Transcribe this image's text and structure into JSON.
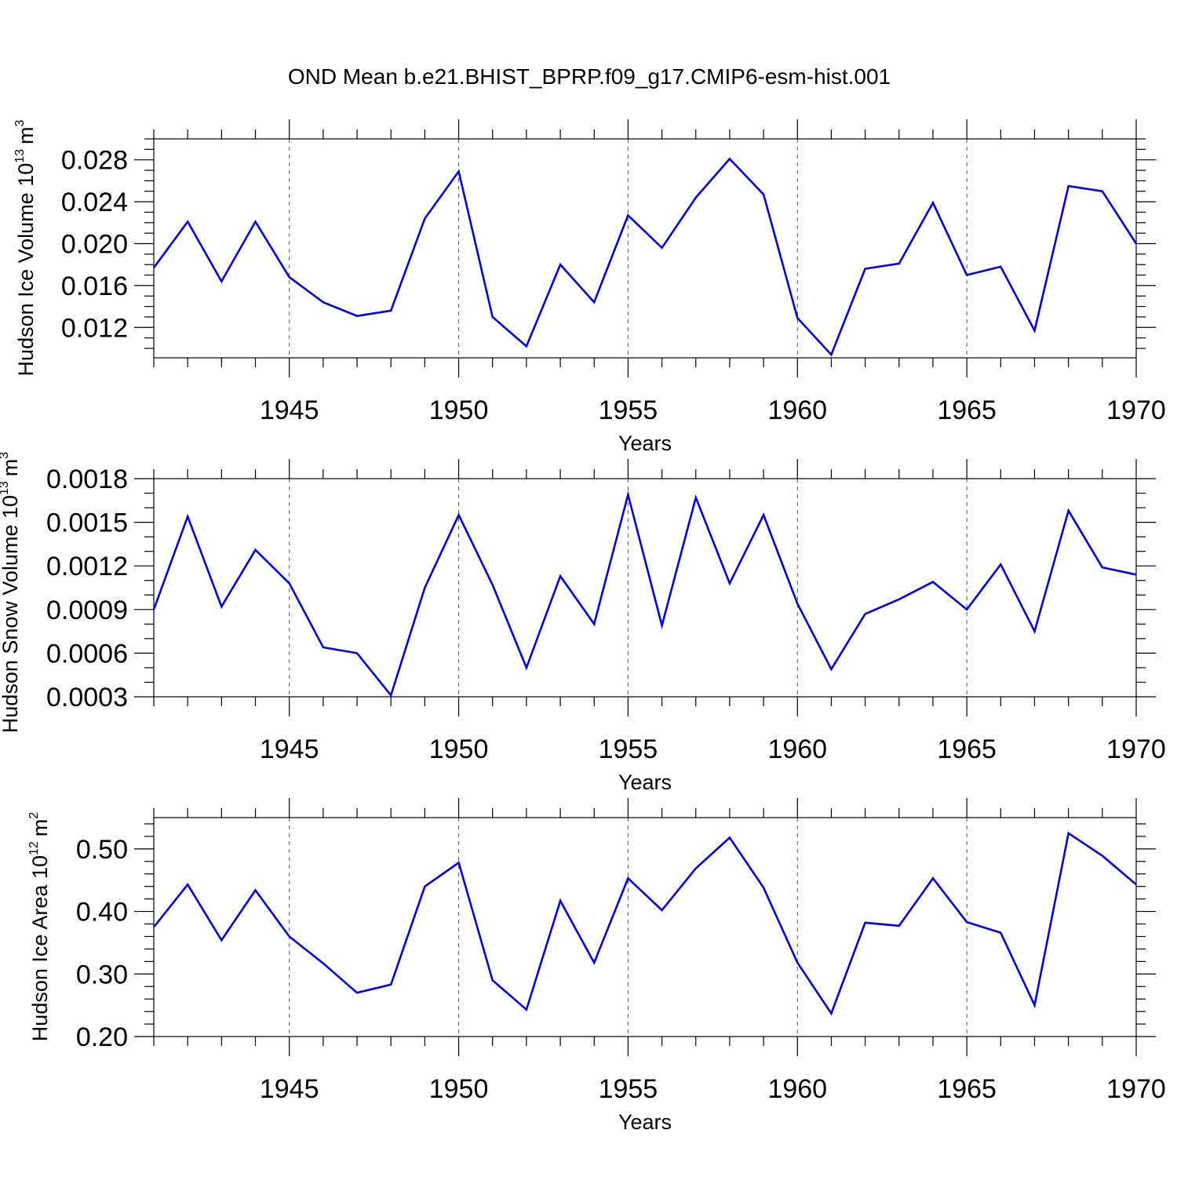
{
  "title": "OND Mean b.e21.BHIST_BPRP.f09_g17.CMIP6-esm-hist.001",
  "line_color": "#0000ee",
  "chart_data": [
    {
      "type": "line",
      "xlabel": "Years",
      "ylabel_text": "Hudson Ice Volume 10",
      "ylabel_exp": "13",
      "ylabel_unit": "m",
      "ylabel_unit_exp": "3",
      "xlim": [
        1941,
        1970
      ],
      "ylim": [
        0.0091,
        0.03
      ],
      "grid": "dashed vertical at major x ticks",
      "x_ticks": [
        1945,
        1950,
        1955,
        1960,
        1965,
        1970
      ],
      "x_tick_labels": [
        "1945",
        "1950",
        "1955",
        "1960",
        "1965",
        "1970"
      ],
      "y_ticks": [
        0.012,
        0.016,
        0.02,
        0.024,
        0.028
      ],
      "y_tick_labels": [
        "0.012",
        "0.016",
        "0.020",
        "0.024",
        "0.028"
      ],
      "y_minor_step": 0.001,
      "x": [
        1941,
        1942,
        1943,
        1944,
        1945,
        1946,
        1947,
        1948,
        1949,
        1950,
        1951,
        1952,
        1953,
        1954,
        1955,
        1956,
        1957,
        1958,
        1959,
        1960,
        1961,
        1962,
        1963,
        1964,
        1965,
        1966,
        1967,
        1968,
        1969,
        1970
      ],
      "y": [
        0.0177,
        0.0221,
        0.0164,
        0.0221,
        0.0168,
        0.0144,
        0.0131,
        0.0136,
        0.0224,
        0.0269,
        0.013,
        0.0102,
        0.018,
        0.0144,
        0.0227,
        0.0196,
        0.0244,
        0.0281,
        0.0247,
        0.0129,
        0.0094,
        0.0176,
        0.0181,
        0.0239,
        0.017,
        0.0178,
        0.0117,
        0.0255,
        0.025,
        0.02
      ]
    },
    {
      "type": "line",
      "xlabel": "Years",
      "ylabel_text": "Hudson Snow Volume 10",
      "ylabel_exp": "13",
      "ylabel_unit": "m",
      "ylabel_unit_exp": "3",
      "xlim": [
        1941,
        1970
      ],
      "ylim": [
        0.0003,
        0.0018
      ],
      "grid": "dashed vertical at major x ticks",
      "x_ticks": [
        1945,
        1950,
        1955,
        1960,
        1965,
        1970
      ],
      "x_tick_labels": [
        "1945",
        "1950",
        "1955",
        "1960",
        "1965",
        "1970"
      ],
      "y_ticks": [
        0.0003,
        0.0006,
        0.0009,
        0.0012,
        0.0015,
        0.0018
      ],
      "y_tick_labels": [
        "0.0003",
        "0.0006",
        "0.0009",
        "0.0012",
        "0.0015",
        "0.0018"
      ],
      "y_minor_step": 0.0001,
      "x": [
        1941,
        1942,
        1943,
        1944,
        1945,
        1946,
        1947,
        1948,
        1949,
        1950,
        1951,
        1952,
        1953,
        1954,
        1955,
        1956,
        1957,
        1958,
        1959,
        1960,
        1961,
        1962,
        1963,
        1964,
        1965,
        1966,
        1967,
        1968,
        1969,
        1970
      ],
      "y": [
        0.0009,
        0.00154,
        0.00092,
        0.00131,
        0.00108,
        0.00064,
        0.0006,
        0.00031,
        0.00105,
        0.00155,
        0.00107,
        0.0005,
        0.00113,
        0.0008,
        0.00169,
        0.00079,
        0.00167,
        0.00108,
        0.00155,
        0.00094,
        0.00049,
        0.00087,
        0.00097,
        0.00109,
        0.0009,
        0.00121,
        0.00075,
        0.00158,
        0.00119,
        0.00114
      ]
    },
    {
      "type": "line",
      "xlabel": "Years",
      "ylabel_text": "Hudson Ice Area 10",
      "ylabel_exp": "12",
      "ylabel_unit": "m",
      "ylabel_unit_exp": "2",
      "xlim": [
        1941,
        1970
      ],
      "ylim": [
        0.2,
        0.55
      ],
      "grid": "dashed vertical at major x ticks",
      "x_ticks": [
        1945,
        1950,
        1955,
        1960,
        1965,
        1970
      ],
      "x_tick_labels": [
        "1945",
        "1950",
        "1955",
        "1960",
        "1965",
        "1970"
      ],
      "y_ticks": [
        0.2,
        0.3,
        0.4,
        0.5
      ],
      "y_tick_labels": [
        "0.20",
        "0.30",
        "0.40",
        "0.50"
      ],
      "y_minor_step": 0.02,
      "x": [
        1941,
        1942,
        1943,
        1944,
        1945,
        1946,
        1947,
        1948,
        1949,
        1950,
        1951,
        1952,
        1953,
        1954,
        1955,
        1956,
        1957,
        1958,
        1959,
        1960,
        1961,
        1962,
        1963,
        1964,
        1965,
        1966,
        1967,
        1968,
        1969,
        1970
      ],
      "y": [
        0.375,
        0.443,
        0.354,
        0.434,
        0.36,
        0.317,
        0.27,
        0.283,
        0.44,
        0.478,
        0.29,
        0.243,
        0.417,
        0.318,
        0.453,
        0.402,
        0.469,
        0.518,
        0.438,
        0.318,
        0.237,
        0.382,
        0.377,
        0.453,
        0.383,
        0.366,
        0.25,
        0.525,
        0.489,
        0.443
      ]
    }
  ]
}
